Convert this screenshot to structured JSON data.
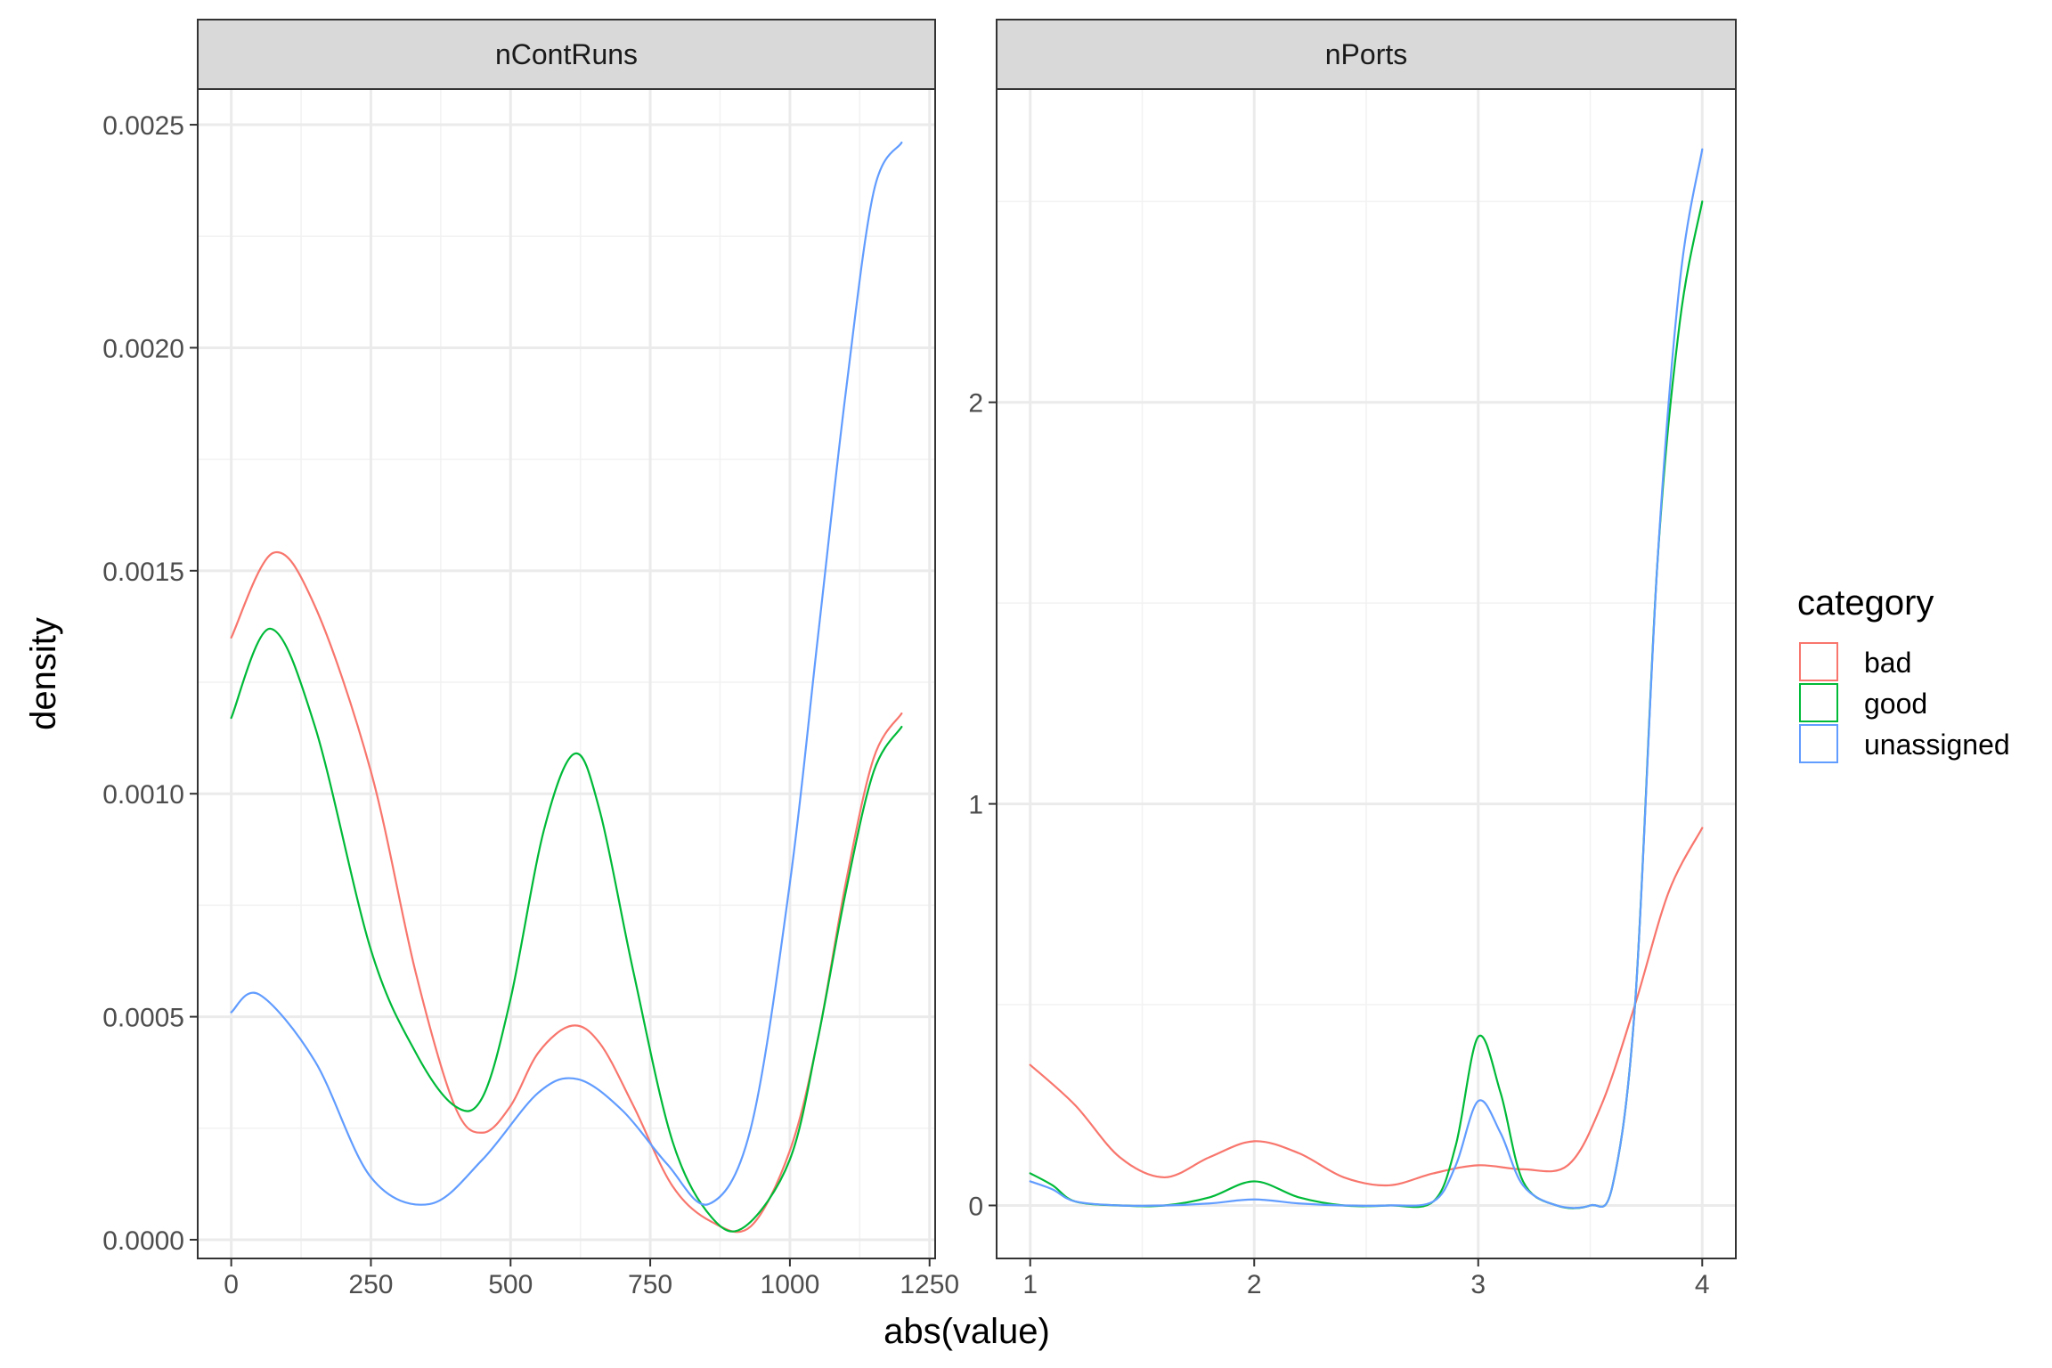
{
  "chart_data": {
    "type": "line",
    "xlabel": "abs(value)",
    "ylabel": "density",
    "legend": {
      "title": "category",
      "position": "right"
    },
    "colors": {
      "bad": "#F8766D",
      "good": "#00BA38",
      "unassigned": "#619CFF"
    },
    "grid": true,
    "panels": [
      {
        "title": "nContRuns",
        "xlim": [
          -60,
          1260
        ],
        "ylim": [
          -4.2e-05,
          0.00258
        ],
        "x_ticks": [
          0,
          250,
          500,
          750,
          1000,
          1250
        ],
        "x_tick_labels": [
          "0",
          "250",
          "500",
          "750",
          "1000",
          "1250"
        ],
        "y_ticks": [
          0.0,
          0.0005,
          0.001,
          0.0015,
          0.002,
          0.0025
        ],
        "y_tick_labels": [
          "0.0000",
          "0.0005",
          "0.0010",
          "0.0015",
          "0.0020",
          "0.0025"
        ],
        "series": [
          {
            "name": "bad",
            "x": [
              0,
              75,
              150,
              250,
              330,
              400,
              450,
              500,
              550,
              610,
              660,
              720,
              790,
              860,
              930,
              1000,
              1050,
              1100,
              1150,
              1200
            ],
            "y": [
              0.00135,
              0.00154,
              0.00142,
              0.00105,
              0.0006,
              0.0003,
              0.00024,
              0.0003,
              0.00042,
              0.00048,
              0.00044,
              0.0003,
              0.00012,
              4e-05,
              3e-05,
              0.0002,
              0.00045,
              0.0008,
              0.00108,
              0.00118
            ]
          },
          {
            "name": "good",
            "x": [
              0,
              70,
              150,
              250,
              330,
              400,
              450,
              500,
              560,
              615,
              660,
              720,
              790,
              860,
              920,
              1000,
              1050,
              1100,
              1150,
              1200
            ],
            "y": [
              0.00117,
              0.00137,
              0.00115,
              0.00065,
              0.00042,
              0.0003,
              0.00032,
              0.00054,
              0.00092,
              0.00109,
              0.00096,
              0.0006,
              0.00022,
              5e-05,
              3e-05,
              0.00018,
              0.00045,
              0.00078,
              0.00105,
              0.00115
            ]
          },
          {
            "name": "unassigned",
            "x": [
              0,
              50,
              150,
              250,
              355,
              450,
              550,
              620,
              700,
              780,
              855,
              930,
              1000,
              1050,
              1100,
              1150,
              1200
            ],
            "y": [
              0.00051,
              0.00055,
              0.0004,
              0.00014,
              8e-05,
              0.00018,
              0.00033,
              0.00036,
              0.00029,
              0.00017,
              8e-05,
              0.00025,
              0.0008,
              0.00135,
              0.0019,
              0.00235,
              0.00246
            ]
          }
        ]
      },
      {
        "title": "nPorts",
        "xlim": [
          0.85,
          4.15
        ],
        "ylim": [
          -0.132,
          2.78
        ],
        "x_ticks": [
          1,
          2,
          3,
          4
        ],
        "x_tick_labels": [
          "1",
          "2",
          "3",
          "4"
        ],
        "y_ticks": [
          0,
          1,
          2
        ],
        "y_tick_labels": [
          "0",
          "1",
          "2"
        ],
        "series": [
          {
            "name": "bad",
            "x": [
              1.0,
              1.2,
              1.4,
              1.6,
              1.8,
              2.0,
              2.2,
              2.4,
              2.6,
              2.8,
              3.0,
              3.2,
              3.4,
              3.55,
              3.7,
              3.85,
              4.0
            ],
            "y": [
              0.35,
              0.25,
              0.12,
              0.07,
              0.12,
              0.16,
              0.13,
              0.07,
              0.05,
              0.08,
              0.1,
              0.09,
              0.1,
              0.25,
              0.5,
              0.78,
              0.94
            ]
          },
          {
            "name": "good",
            "x": [
              1.0,
              1.1,
              1.2,
              1.4,
              1.6,
              1.8,
              2.0,
              2.2,
              2.4,
              2.6,
              2.8,
              2.9,
              3.0,
              3.1,
              3.2,
              3.35,
              3.5,
              3.6,
              3.7,
              3.8,
              3.9,
              4.0
            ],
            "y": [
              0.08,
              0.05,
              0.01,
              0.0,
              0.0,
              0.02,
              0.06,
              0.02,
              0.0,
              0.0,
              0.01,
              0.15,
              0.42,
              0.28,
              0.06,
              0.0,
              0.0,
              0.05,
              0.5,
              1.6,
              2.2,
              2.5
            ]
          },
          {
            "name": "unassigned",
            "x": [
              1.0,
              1.1,
              1.2,
              1.4,
              1.6,
              1.8,
              2.0,
              2.2,
              2.4,
              2.6,
              2.8,
              2.9,
              3.0,
              3.1,
              3.2,
              3.35,
              3.5,
              3.6,
              3.7,
              3.8,
              3.9,
              4.0
            ],
            "y": [
              0.06,
              0.04,
              0.01,
              0.0,
              0.0,
              0.005,
              0.015,
              0.005,
              0.0,
              0.0,
              0.01,
              0.1,
              0.26,
              0.18,
              0.05,
              0.0,
              0.0,
              0.05,
              0.5,
              1.6,
              2.3,
              2.63
            ]
          }
        ]
      }
    ]
  }
}
